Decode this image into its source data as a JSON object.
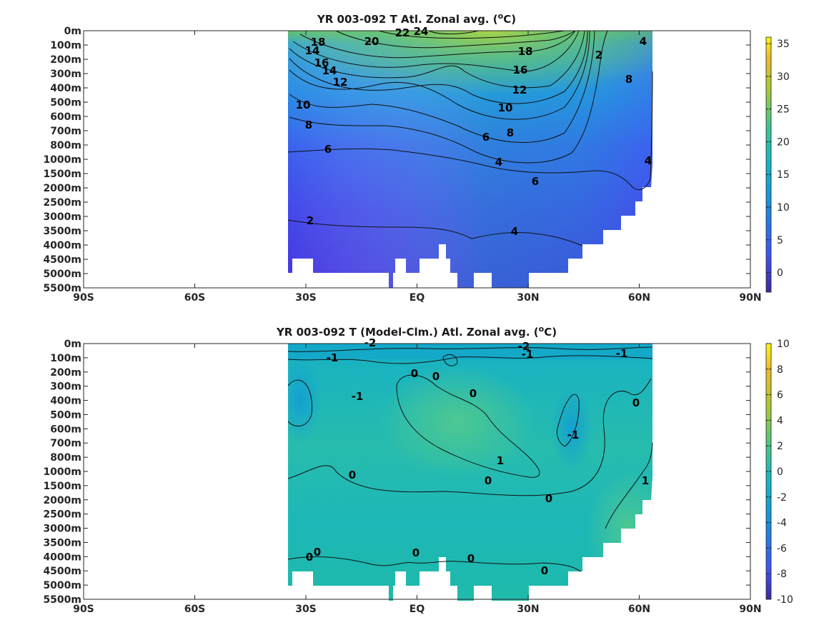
{
  "chart_data": [
    {
      "type": "heatmap",
      "title": "YR 003-092 T Atl. Zonal avg. (",
      "title_sup": "o",
      "title_end": "C)",
      "x_ticks": [
        "90S",
        "60S",
        "30S",
        "EQ",
        "30N",
        "60N",
        "90N"
      ],
      "y_ticks": [
        "0m",
        "100m",
        "200m",
        "300m",
        "400m",
        "500m",
        "600m",
        "700m",
        "800m",
        "1000m",
        "1500m",
        "2000m",
        "2500m",
        "3000m",
        "3500m",
        "4000m",
        "4500m",
        "5000m",
        "5500m"
      ],
      "colorbar": {
        "min": -3,
        "max": 36,
        "ticks": [
          35,
          30,
          25,
          20,
          15,
          10,
          5,
          0
        ]
      },
      "contour_labels": [
        "24",
        "22",
        "20",
        "18",
        "16",
        "14",
        "12",
        "10",
        "8",
        "6",
        "4",
        "2",
        "18",
        "16",
        "14",
        "12",
        "10",
        "8",
        "6",
        "4",
        "2",
        "8",
        "6",
        "4",
        "4"
      ],
      "colors": {
        "low": "#4a3ce0",
        "mid": "#1fa0d8",
        "high": "#8fd14f",
        "top": "#f7e01a"
      }
    },
    {
      "type": "heatmap",
      "title": "YR 003-092 T (Model-Clm.) Atl. Zonal avg. (",
      "title_sup": "o",
      "title_end": "C)",
      "x_ticks": [
        "90S",
        "60S",
        "30S",
        "EQ",
        "30N",
        "60N",
        "90N"
      ],
      "y_ticks": [
        "0m",
        "100m",
        "200m",
        "300m",
        "400m",
        "500m",
        "600m",
        "700m",
        "800m",
        "1000m",
        "1500m",
        "2000m",
        "2500m",
        "3000m",
        "3500m",
        "4000m",
        "4500m",
        "5000m",
        "5500m"
      ],
      "colorbar": {
        "min": -10,
        "max": 10,
        "ticks": [
          10,
          8,
          6,
          4,
          2,
          0,
          -2,
          -4,
          -6,
          -8,
          -10
        ]
      },
      "contour_labels": [
        "-2",
        "-2",
        "-1",
        "-1",
        "-1",
        "-1",
        "0",
        "0",
        "0",
        "0",
        "1",
        "0",
        "0",
        "0",
        "-1",
        "0",
        "1",
        "0",
        "0",
        "0",
        "0"
      ],
      "colors": {
        "field": "#1db5b8",
        "warm": "#3ec79a",
        "cool": "#17a0c8"
      }
    }
  ]
}
